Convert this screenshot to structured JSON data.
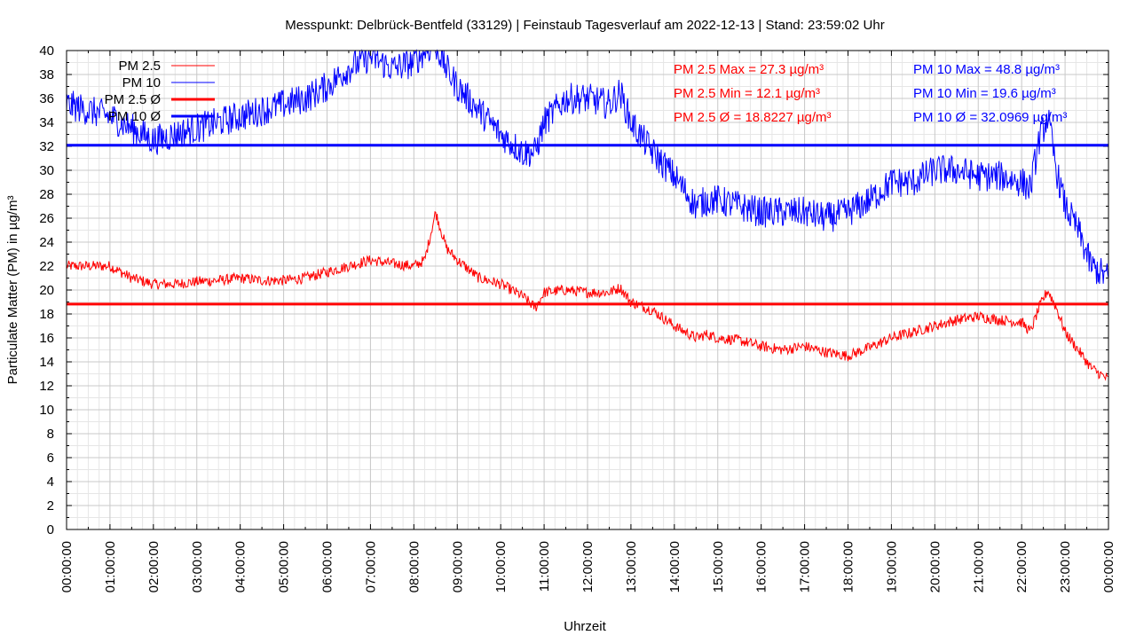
{
  "chart_data": {
    "type": "line",
    "title": "Messpunkt: Delbrück-Bentfeld (33129) | Feinstaub Tagesverlauf am 2022-12-13 | Stand: 23:59:02 Uhr",
    "xlabel": "Uhrzeit",
    "ylabel": "Particulate Matter (PM) in µg/m³",
    "ylim": [
      0,
      40
    ],
    "xlim": [
      0,
      24
    ],
    "yticks": [
      0,
      2,
      4,
      6,
      8,
      10,
      12,
      14,
      16,
      18,
      20,
      22,
      24,
      26,
      28,
      30,
      32,
      34,
      36,
      38,
      40
    ],
    "xticks": [
      "00:00:00",
      "01:00:00",
      "02:00:00",
      "03:00:00",
      "04:00:00",
      "05:00:00",
      "06:00:00",
      "07:00:00",
      "08:00:00",
      "09:00:00",
      "10:00:00",
      "11:00:00",
      "12:00:00",
      "13:00:00",
      "14:00:00",
      "15:00:00",
      "16:00:00",
      "17:00:00",
      "18:00:00",
      "19:00:00",
      "20:00:00",
      "21:00:00",
      "22:00:00",
      "23:00:00",
      "00:00:00"
    ],
    "grid": true,
    "legend_position": "top-left",
    "series": [
      {
        "name": "PM 2.5",
        "color": "#ff0000",
        "x": [
          0,
          0.5,
          1,
          1.5,
          2,
          2.5,
          3,
          3.5,
          4,
          4.5,
          5,
          5.5,
          6,
          6.5,
          7,
          7.5,
          8,
          8.25,
          8.5,
          8.75,
          9,
          9.5,
          10,
          10.5,
          10.8,
          11,
          11.5,
          12,
          12.5,
          12.75,
          13,
          13.5,
          14,
          14.5,
          14.75,
          15,
          15.5,
          16,
          16.5,
          17,
          17.5,
          18,
          18.5,
          19,
          19.5,
          20,
          20.5,
          21,
          21.5,
          22,
          22.2,
          22.4,
          22.6,
          22.8,
          23,
          23.3,
          23.6,
          24
        ],
        "values": [
          22.0,
          22.0,
          22.0,
          21.0,
          20.5,
          20.5,
          20.7,
          20.8,
          21.0,
          20.8,
          20.8,
          21.0,
          21.5,
          22.0,
          22.5,
          22.2,
          22.0,
          22.5,
          26.5,
          23.5,
          22.5,
          21.0,
          20.5,
          19.5,
          18.5,
          19.8,
          20.0,
          19.8,
          19.8,
          20.2,
          19.0,
          18.3,
          17.0,
          16.0,
          16.3,
          16.0,
          15.8,
          15.3,
          15.0,
          15.3,
          14.8,
          14.5,
          15.2,
          16.0,
          16.5,
          17.0,
          17.5,
          17.8,
          17.5,
          17.3,
          16.5,
          18.5,
          20.0,
          18.5,
          16.5,
          15.0,
          13.5,
          12.5
        ]
      },
      {
        "name": "PM 10",
        "color": "#0000ff",
        "x": [
          0,
          0.5,
          1,
          1.5,
          2,
          2.5,
          3,
          3.5,
          4,
          4.5,
          5,
          5.5,
          6,
          6.5,
          7,
          7.5,
          8,
          8.25,
          8.5,
          8.75,
          9,
          9.5,
          10,
          10.5,
          10.8,
          11,
          11.5,
          12,
          12.5,
          12.75,
          13,
          13.5,
          14,
          14.5,
          14.75,
          15,
          15.5,
          16,
          16.5,
          17,
          17.5,
          18,
          18.5,
          19,
          19.5,
          20,
          20.5,
          21,
          21.5,
          22,
          22.2,
          22.4,
          22.6,
          22.8,
          23,
          23.3,
          23.6,
          24
        ],
        "values": [
          35.5,
          35.0,
          34.5,
          33.5,
          32.5,
          33.0,
          33.5,
          34.0,
          34.5,
          35.0,
          35.5,
          36.0,
          37.0,
          38.5,
          39.5,
          38.5,
          39.0,
          40.0,
          40.5,
          38.5,
          37.0,
          35.0,
          33.0,
          31.5,
          31.5,
          34.0,
          36.0,
          36.0,
          35.5,
          36.5,
          34.0,
          31.5,
          29.5,
          27.0,
          27.5,
          27.5,
          27.0,
          26.5,
          26.5,
          26.5,
          26.0,
          26.5,
          27.5,
          29.0,
          29.0,
          30.0,
          30.0,
          29.5,
          29.5,
          29.0,
          28.5,
          32.5,
          34.5,
          30.0,
          27.0,
          25.0,
          22.0,
          21.0
        ]
      }
    ],
    "reference_lines": [
      {
        "name": "PM 2.5 Ø",
        "value": 18.8227,
        "color": "#ff0000"
      },
      {
        "name": "PM 10 Ø",
        "value": 32.0969,
        "color": "#0000ff"
      }
    ],
    "annotations": [
      {
        "text": "PM 2.5 Max = 27.3 µg/m³",
        "color": "#ff0000"
      },
      {
        "text": "PM 2.5 Min = 12.1 µg/m³",
        "color": "#ff0000"
      },
      {
        "text": "PM 2.5 Ø = 18.8227 µg/m³",
        "color": "#ff0000"
      },
      {
        "text": "PM 10 Max = 48.8 µg/m³",
        "color": "#0000ff"
      },
      {
        "text": "PM 10 Min = 19.6 µg/m³",
        "color": "#0000ff"
      },
      {
        "text": "PM 10 Ø = 32.0969 µg/m³",
        "color": "#0000ff"
      }
    ]
  }
}
